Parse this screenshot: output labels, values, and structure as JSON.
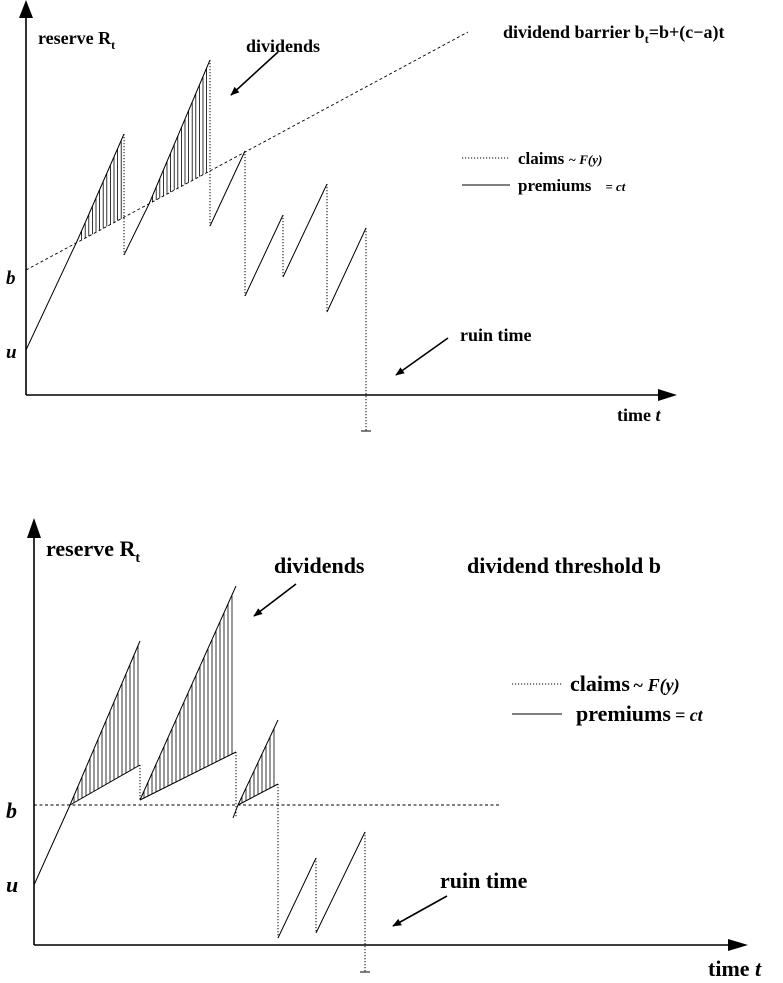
{
  "top_panel": {
    "y_label": "reserve R",
    "y_sub": "t",
    "x_label": "time",
    "x_var": "t",
    "tick_b": "b",
    "tick_u": "u",
    "barrier_label_a": "dividend barrier b",
    "barrier_label_sub": "t",
    "barrier_label_b": "=b+(c−a)t",
    "dividends_label": "dividends",
    "legend_claims": "claims",
    "legend_claims_math": "~ F(y)",
    "legend_premiums": "premiums",
    "legend_premiums_math": "= ct",
    "ruin_label": "ruin time"
  },
  "bottom_panel": {
    "y_label": "reserve R",
    "y_sub": "t",
    "x_label": "time",
    "x_var": "t",
    "tick_b": "b",
    "tick_u": "u",
    "threshold_label": "dividend threshold b",
    "dividends_label": "dividends",
    "legend_claims": "claims",
    "legend_claims_math": "~ F(y)",
    "legend_premiums": "premiums",
    "legend_premiums_math": "= ct",
    "ruin_label": "ruin time"
  }
}
